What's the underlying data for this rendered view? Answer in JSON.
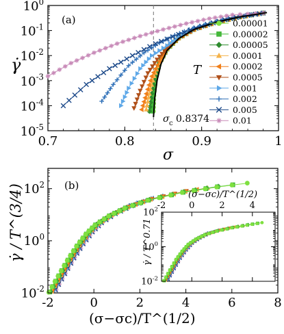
{
  "chart_data": [
    {
      "type": "line",
      "panel_label": "(a)",
      "xlabel": "σ",
      "ylabel": "γ̇",
      "xscale": "linear",
      "yscale": "log",
      "xlim": [
        0.7,
        1.0
      ],
      "ylim": [
        1e-05,
        1.0
      ],
      "xticks": [
        0.7,
        0.8,
        0.9,
        1.0
      ],
      "xtick_labels": [
        "0.7",
        "0.8",
        "0.9",
        "1"
      ],
      "yticks": [
        1e-05,
        0.0001,
        0.001,
        0.01,
        0.1,
        1.0
      ],
      "ytick_labels": [
        [
          "10",
          "-5"
        ],
        [
          "10",
          "-4"
        ],
        [
          "10",
          "-3"
        ],
        [
          "10",
          "-2"
        ],
        [
          "10",
          "-1"
        ],
        [
          "10",
          "0"
        ]
      ],
      "legend_title": "T",
      "legend_position": "right",
      "vline": {
        "x": 0.8374,
        "style": "dashed"
      },
      "annotation": {
        "text": "σ",
        "sub": "c",
        "value": "0.8374"
      },
      "series": [
        {
          "name": "0.00001",
          "marker": "circle",
          "color": "#7fe040",
          "x": [
            0.8374,
            0.838,
            0.84,
            0.845,
            0.855,
            0.87,
            0.89,
            0.92,
            0.95,
            0.98
          ],
          "y": [
            6e-05,
            0.00025,
            0.0012,
            0.005,
            0.018,
            0.05,
            0.11,
            0.22,
            0.35,
            0.5
          ]
        },
        {
          "name": "0.00002",
          "marker": "square",
          "color": "#44b83a",
          "x": [
            0.836,
            0.837,
            0.84,
            0.845,
            0.855,
            0.87,
            0.89,
            0.92,
            0.95,
            0.98
          ],
          "y": [
            6e-05,
            0.0002,
            0.0012,
            0.005,
            0.018,
            0.05,
            0.11,
            0.22,
            0.35,
            0.5
          ]
        },
        {
          "name": "0.00005",
          "marker": "diamond",
          "color": "#2e8b2e",
          "x": [
            0.832,
            0.835,
            0.84,
            0.845,
            0.855,
            0.87,
            0.89,
            0.92,
            0.95,
            0.98
          ],
          "y": [
            6e-05,
            0.0003,
            0.0015,
            0.005,
            0.018,
            0.05,
            0.11,
            0.22,
            0.35,
            0.5
          ]
        },
        {
          "name": "0.0001",
          "marker": "triangle-up",
          "color": "#f5b24a",
          "x": [
            0.828,
            0.832,
            0.838,
            0.845,
            0.855,
            0.87,
            0.89,
            0.92,
            0.95,
            0.98
          ],
          "y": [
            7e-05,
            0.0003,
            0.0015,
            0.005,
            0.018,
            0.05,
            0.11,
            0.22,
            0.35,
            0.5
          ]
        },
        {
          "name": "0.0002",
          "marker": "triangle-left",
          "color": "#f07f1a",
          "x": [
            0.822,
            0.828,
            0.835,
            0.845,
            0.855,
            0.87,
            0.89,
            0.92,
            0.95,
            0.98
          ],
          "y": [
            7e-05,
            0.0003,
            0.0015,
            0.006,
            0.02,
            0.05,
            0.11,
            0.22,
            0.35,
            0.5
          ]
        },
        {
          "name": "0.0005",
          "marker": "triangle-down",
          "color": "#b0501a",
          "x": [
            0.812,
            0.82,
            0.83,
            0.842,
            0.855,
            0.87,
            0.89,
            0.92,
            0.95,
            0.98
          ],
          "y": [
            8e-05,
            0.0004,
            0.002,
            0.007,
            0.02,
            0.05,
            0.11,
            0.22,
            0.35,
            0.5
          ]
        },
        {
          "name": "0.001",
          "marker": "triangle-right",
          "color": "#5ea8e8",
          "x": [
            0.795,
            0.805,
            0.82,
            0.835,
            0.855,
            0.87,
            0.89,
            0.92,
            0.95,
            0.98
          ],
          "y": [
            0.0001,
            0.0005,
            0.003,
            0.01,
            0.025,
            0.055,
            0.12,
            0.23,
            0.36,
            0.5
          ]
        },
        {
          "name": "0.002",
          "marker": "plus",
          "color": "#2f70b8",
          "x": [
            0.77,
            0.785,
            0.805,
            0.825,
            0.845,
            0.865,
            0.89,
            0.92,
            0.95,
            0.98
          ],
          "y": [
            0.00015,
            0.0007,
            0.004,
            0.013,
            0.032,
            0.065,
            0.13,
            0.24,
            0.37,
            0.5
          ]
        },
        {
          "name": "0.005",
          "marker": "cross",
          "color": "#1d4a8a",
          "x": [
            0.72,
            0.75,
            0.78,
            0.81,
            0.84,
            0.87,
            0.9,
            0.93,
            0.96,
            0.98
          ],
          "y": [
            0.0001,
            0.0007,
            0.003,
            0.01,
            0.03,
            0.07,
            0.15,
            0.27,
            0.4,
            0.5
          ]
        },
        {
          "name": "0.01",
          "marker": "star",
          "color": "#c88ab8",
          "x": [
            0.7,
            0.73,
            0.76,
            0.79,
            0.82,
            0.85,
            0.88,
            0.91,
            0.94,
            0.98
          ],
          "y": [
            0.0015,
            0.005,
            0.013,
            0.03,
            0.06,
            0.11,
            0.19,
            0.3,
            0.42,
            0.5
          ]
        }
      ]
    },
    {
      "type": "line",
      "panel_label": "(b)",
      "xlabel": "(σ−σc)/T^(1/2)",
      "ylabel": "γ̇ / T^(3/4)",
      "xscale": "linear",
      "yscale": "log",
      "xlim": [
        -2,
        8
      ],
      "ylim": [
        0.01,
        600
      ],
      "xticks": [
        -2,
        0,
        2,
        4,
        6,
        8
      ],
      "xtick_labels": [
        "-2",
        "0",
        "2",
        "4",
        "6",
        "8"
      ],
      "yticks": [
        0.01,
        1,
        100
      ],
      "ytick_labels": [
        [
          "10",
          "-2"
        ],
        [
          "10",
          "0"
        ],
        [
          "10",
          "2"
        ]
      ],
      "collapse_curve": {
        "x": [
          -1.8,
          -1.4,
          -1.0,
          -0.6,
          -0.2,
          0.2,
          0.8,
          1.5,
          2.5,
          4.0,
          5.5,
          7.5
        ],
        "y": [
          0.012,
          0.05,
          0.2,
          0.7,
          2.0,
          4.5,
          10,
          20,
          40,
          80,
          130,
          220
        ]
      },
      "inset": {
        "xlabel": "(σ−σc)/T^(1/2)",
        "ylabel": "γ̇ / T^0.71",
        "xlim": [
          -2,
          5.5
        ],
        "ylim": [
          0.01,
          100
        ],
        "xticks": [
          -2,
          0,
          2,
          4
        ],
        "xtick_labels": [
          "-2",
          "0",
          "2",
          "4"
        ],
        "yticks": [
          0.01,
          1,
          100
        ],
        "ytick_labels": [
          [
            "10",
            "-2"
          ],
          [
            "10",
            "0"
          ],
          [
            "10",
            "2"
          ]
        ],
        "collapse_curve": {
          "x": [
            -1.7,
            -1.3,
            -0.9,
            -0.5,
            -0.1,
            0.4,
            1.0,
            1.8,
            2.8,
            3.8,
            4.8
          ],
          "y": [
            0.012,
            0.05,
            0.2,
            0.6,
            1.5,
            3.0,
            5.5,
            9.0,
            14,
            20,
            28
          ]
        }
      }
    }
  ]
}
